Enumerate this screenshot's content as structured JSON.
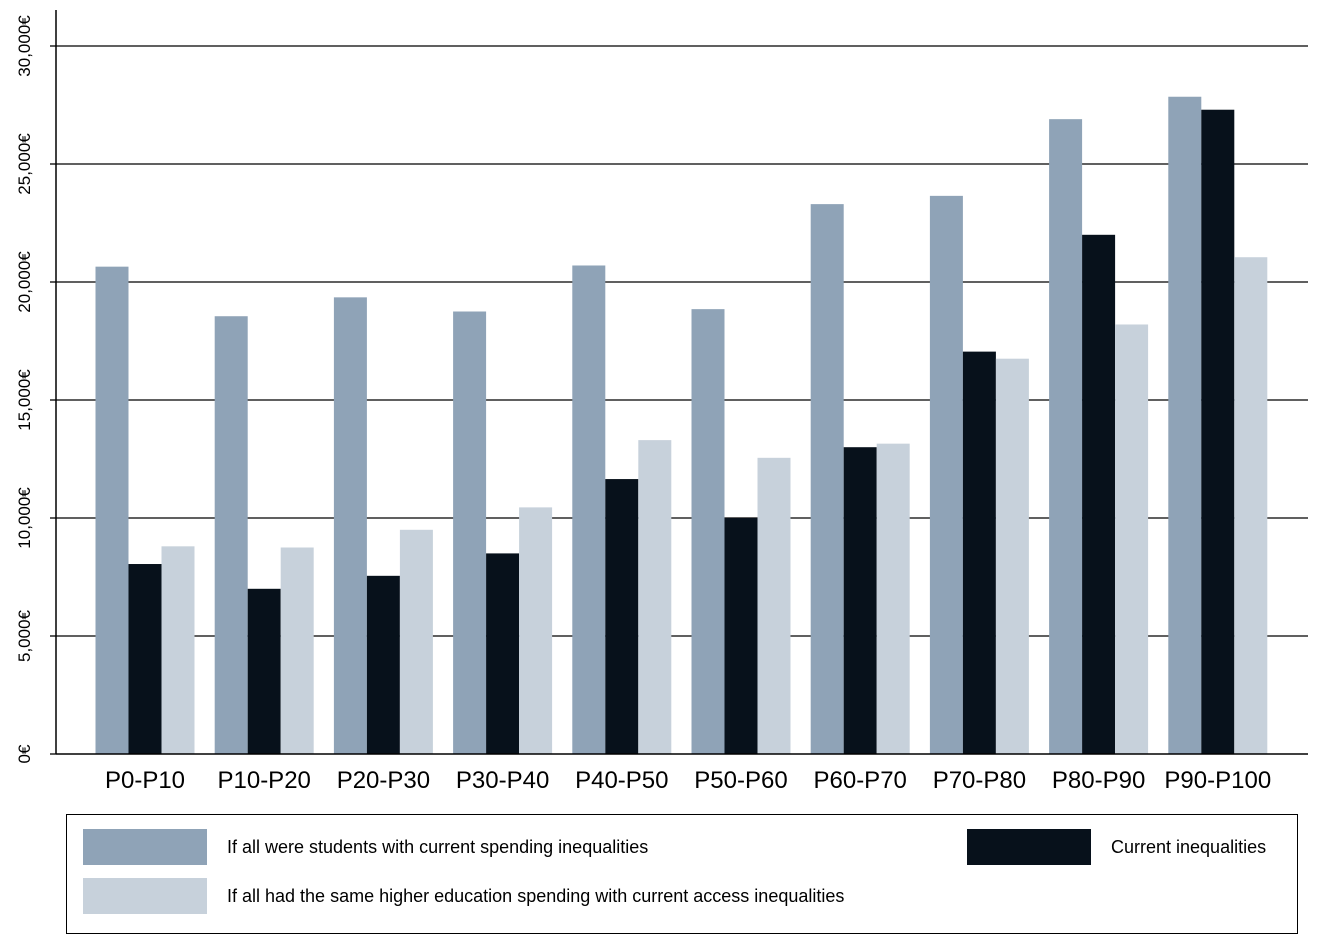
{
  "chart_data": {
    "type": "bar",
    "categories": [
      "P0-P10",
      "P10-P20",
      "P20-P30",
      "P30-P40",
      "P40-P50",
      "P50-P60",
      "P60-P70",
      "P70-P80",
      "P80-P90",
      "P90-P100"
    ],
    "series": [
      {
        "name": "If all were students with current spending inequalities",
        "color": "#8fa3b7",
        "values": [
          20650,
          18550,
          19350,
          18750,
          20700,
          18850,
          23300,
          23650,
          26900,
          27850
        ]
      },
      {
        "name": "Current inequalities",
        "color": "#07111b",
        "values": [
          8050,
          7000,
          7550,
          8500,
          11650,
          10000,
          13000,
          17050,
          22000,
          27300
        ]
      },
      {
        "name": "If all had the same higher education spending with current access inequalities",
        "color": "#c7d1db",
        "values": [
          8800,
          8750,
          9500,
          10450,
          13300,
          12550,
          13150,
          16750,
          18200,
          21050
        ]
      }
    ],
    "ylim": [
      0,
      30000
    ],
    "yticks": [
      0,
      5000,
      10000,
      15000,
      20000,
      25000,
      30000
    ],
    "ytick_labels": [
      "0€",
      "5,000€",
      "10,000€",
      "15,000€",
      "20,000€",
      "25,000€",
      "30,000€"
    ],
    "grid": true,
    "legend_position": "bottom"
  },
  "legend": {
    "item1": "If all were students with current spending inequalities",
    "item2": "Current inequalities",
    "item3": "If all had the same higher education spending with current access inequalities"
  }
}
